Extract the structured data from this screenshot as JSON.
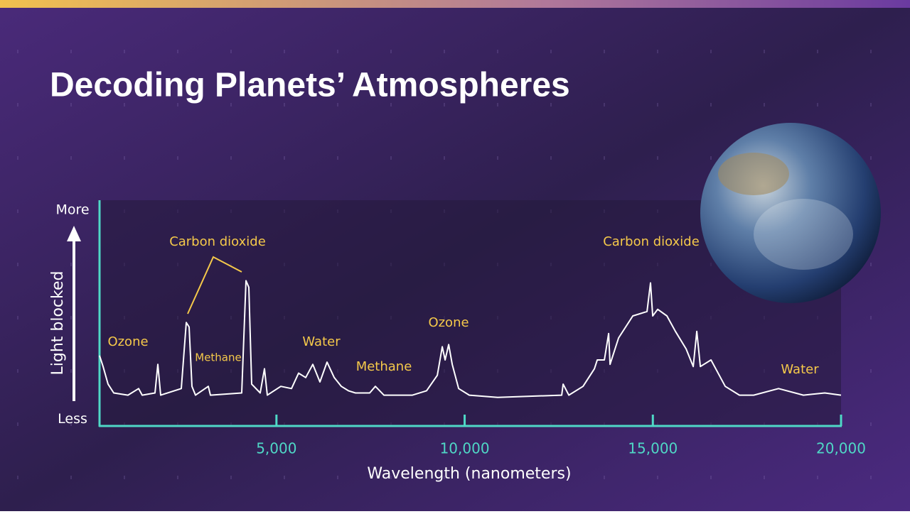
{
  "chart_data": {
    "type": "line",
    "title": "Decoding Planets’ Atmospheres",
    "xlabel": "Wavelength (nanometers)",
    "ylabel": "Light blocked",
    "xlim": [
      300,
      20000
    ],
    "xticks": [
      {
        "value": 5000,
        "label": "5,000"
      },
      {
        "value": 10000,
        "label": "10,000"
      },
      {
        "value": 15000,
        "label": "15,000"
      },
      {
        "value": 20000,
        "label": "20,000"
      }
    ],
    "ylim": [
      0,
      100
    ],
    "yticks": [
      {
        "value": 3,
        "label": "Less"
      },
      {
        "value": 98,
        "label": "More"
      }
    ],
    "annotations": [
      "Ozone",
      "Carbon dioxide",
      "Methane",
      "Water",
      "Methane",
      "Ozone",
      "Carbon dioxide",
      "Water"
    ],
    "series": [
      {
        "name": "Spectrum",
        "color": "#ffffff",
        "x": [
          300,
          394,
          527,
          678,
          1056,
          1339,
          1433,
          1773,
          1849,
          1925,
          2472,
          2605,
          2680,
          2756,
          2850,
          3190,
          3247,
          4078,
          4191,
          4267,
          4342,
          4569,
          4682,
          4758,
          5117,
          5400,
          5589,
          5778,
          5967,
          6156,
          6345,
          6534,
          6723,
          6912,
          7100,
          7478,
          7629,
          7856,
          8612,
          8989,
          9273,
          9405,
          9481,
          9575,
          9670,
          9840,
          10123,
          10878,
          12579,
          12616,
          12767,
          13145,
          13447,
          13523,
          13712,
          13825,
          13863,
          14090,
          14467,
          14845,
          14939,
          14996,
          15128,
          15374,
          15600,
          15884,
          16073,
          16167,
          16262,
          16545,
          16923,
          17300,
          17678,
          18339,
          19001,
          19568,
          20000
        ],
        "values": [
          32,
          27,
          19,
          15,
          14,
          17,
          14,
          15,
          28,
          14,
          17,
          47,
          45,
          18,
          14,
          18,
          14,
          15,
          66,
          63,
          19,
          15,
          26,
          14,
          18,
          17,
          24,
          22,
          28,
          20,
          29,
          22,
          18,
          16,
          15,
          15,
          18,
          14,
          14,
          16,
          23,
          36,
          30,
          37,
          28,
          17,
          14,
          13,
          14,
          19,
          14,
          18,
          26,
          30,
          30,
          42,
          28,
          40,
          50,
          52,
          65,
          50,
          53,
          50,
          43,
          35,
          27,
          43,
          27,
          30,
          18,
          14,
          14,
          17,
          14,
          15,
          14
        ]
      }
    ]
  }
}
